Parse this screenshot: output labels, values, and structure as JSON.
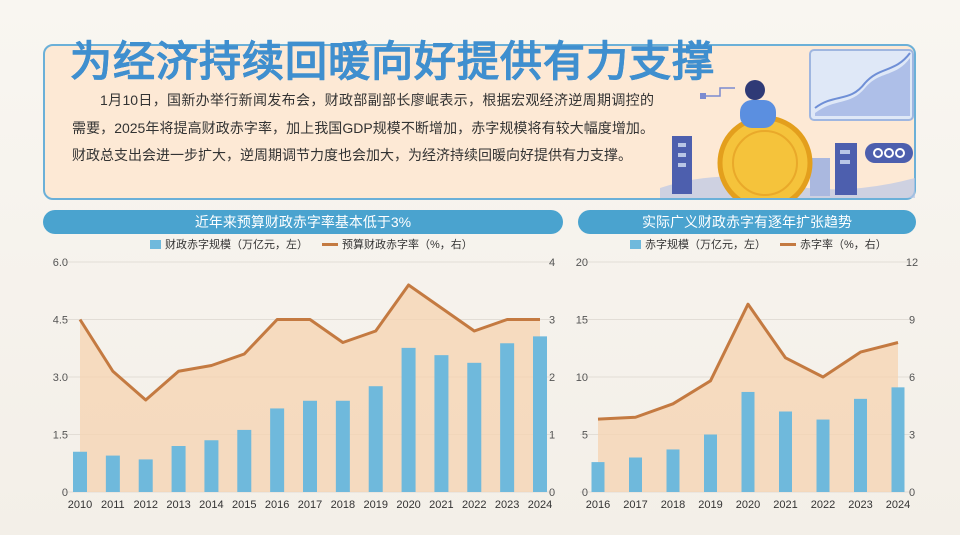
{
  "title": "为经济持续回暖向好提供有力支撑",
  "intro": "1月10日，国新办举行新闻发布会，财政部副部长廖岷表示，根据宏观经济逆周期调控的需要，2025年将提高财政赤字率，加上我国GDP规模不断增加，赤字规模将有较大幅度增加。财政总支出会进一步扩大，逆周期调节力度也会加大，为经济持续回暖向好提供有力支撑。",
  "colors": {
    "bar": "#6fb9dc",
    "line": "#c47a41",
    "area": "#f6d3b0",
    "header": "#4aa3cf"
  },
  "chart_data": [
    {
      "type": "bar",
      "title": "近年来预算财政赤字率基本低于3%",
      "categories": [
        "2010",
        "2011",
        "2012",
        "2013",
        "2014",
        "2015",
        "2016",
        "2017",
        "2018",
        "2019",
        "2020",
        "2021",
        "2022",
        "2023",
        "2024"
      ],
      "series": [
        {
          "name": "财政赤字规模（万亿元，左）",
          "type": "bar",
          "axis": "left",
          "values": [
            1.05,
            0.95,
            0.85,
            1.2,
            1.35,
            1.62,
            2.18,
            2.38,
            2.38,
            2.76,
            3.76,
            3.57,
            3.37,
            3.88,
            4.06
          ]
        },
        {
          "name": "预算财政赤字率（%，右）",
          "type": "line",
          "axis": "right",
          "values": [
            3.0,
            2.1,
            1.6,
            2.1,
            2.2,
            2.4,
            3.0,
            3.0,
            2.6,
            2.8,
            3.6,
            3.2,
            2.8,
            3.0,
            3.0
          ]
        }
      ],
      "yleft": {
        "ticks": [
          "6.0",
          "4.5",
          "3.0",
          "1.5",
          "0"
        ],
        "ylim": [
          0,
          6
        ]
      },
      "yright": {
        "ticks": [
          "4",
          "3",
          "2",
          "1",
          "0"
        ],
        "ylim": [
          0,
          4
        ]
      }
    },
    {
      "type": "bar",
      "title": "实际广义财政赤字有逐年扩张趋势",
      "categories": [
        "2016",
        "2017",
        "2018",
        "2019",
        "2020",
        "2021",
        "2022",
        "2023",
        "2024"
      ],
      "series": [
        {
          "name": "赤字规模（万亿元，左）",
          "type": "bar",
          "axis": "left",
          "values": [
            2.6,
            3.0,
            3.7,
            5.0,
            8.7,
            7.0,
            6.3,
            8.1,
            9.1
          ]
        },
        {
          "name": "赤字率（%，右）",
          "type": "line",
          "axis": "right",
          "values": [
            3.8,
            3.9,
            4.6,
            5.8,
            9.8,
            7.0,
            6.0,
            7.3,
            7.8
          ]
        }
      ],
      "yleft": {
        "ticks": [
          "20",
          "15",
          "10",
          "5",
          "0"
        ],
        "ylim": [
          0,
          20
        ]
      },
      "yright": {
        "ticks": [
          "12",
          "9",
          "6",
          "3",
          "0"
        ],
        "ylim": [
          0,
          12
        ]
      }
    }
  ]
}
